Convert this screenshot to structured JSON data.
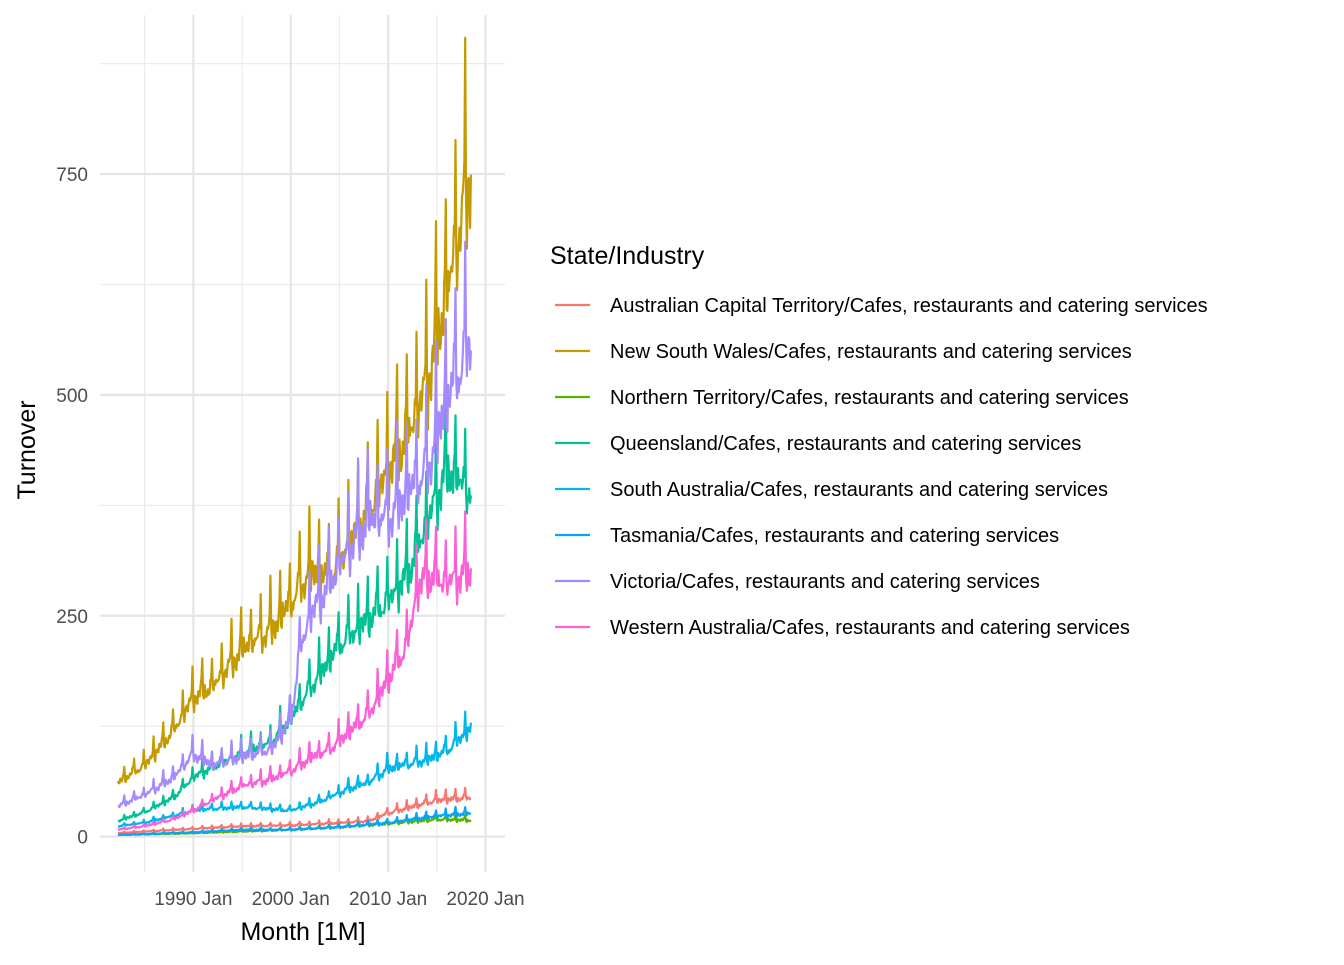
{
  "chart_data": {
    "type": "line",
    "xlabel": "Month [1M]",
    "ylabel": "Turnover",
    "x_ticks": [
      "1990 Jan",
      "2000 Jan",
      "2010 Jan",
      "2020 Jan"
    ],
    "y_ticks": [
      0,
      250,
      500,
      750
    ],
    "xlim": [
      "1980-06",
      "2022-01"
    ],
    "ylim": [
      -40,
      930
    ],
    "grid": true,
    "legend": {
      "title": "State/Industry",
      "position": "right"
    },
    "series": [
      {
        "name": "Australian Capital Territory/Cafes, restaurants and catering services",
        "color": "#F8766D",
        "base": [
          [
            1982.25,
            4
          ],
          [
            1985,
            6
          ],
          [
            1990,
            9
          ],
          [
            1995,
            12
          ],
          [
            2000,
            13
          ],
          [
            2005,
            16
          ],
          [
            2008,
            18
          ],
          [
            2010,
            27
          ],
          [
            2012,
            33
          ],
          [
            2015,
            42
          ],
          [
            2018.5,
            45
          ]
        ],
        "amp": 0.08
      },
      {
        "name": "New South Wales/Cafes, restaurants and catering services",
        "color": "#C49A00",
        "base": [
          [
            1982.25,
            62
          ],
          [
            1985,
            82
          ],
          [
            1988,
            122
          ],
          [
            1990,
            160
          ],
          [
            1992,
            172
          ],
          [
            1995,
            215
          ],
          [
            1998,
            238
          ],
          [
            2000,
            268
          ],
          [
            2002,
            305
          ],
          [
            2004,
            300
          ],
          [
            2006,
            335
          ],
          [
            2008,
            375
          ],
          [
            2010,
            420
          ],
          [
            2012,
            460
          ],
          [
            2014,
            520
          ],
          [
            2016,
            620
          ],
          [
            2018.5,
            765
          ]
        ],
        "amp": 0.065
      },
      {
        "name": "Northern Territory/Cafes, restaurants and catering services",
        "color": "#53B400",
        "base": [
          [
            1982.25,
            2
          ],
          [
            1990,
            4
          ],
          [
            1995,
            6
          ],
          [
            2000,
            8
          ],
          [
            2005,
            11
          ],
          [
            2010,
            15
          ],
          [
            2015,
            20
          ],
          [
            2018.5,
            19
          ]
        ],
        "amp": 0.1
      },
      {
        "name": "Queensland/Cafes, restaurants and catering services",
        "color": "#00C094",
        "base": [
          [
            1982.25,
            18
          ],
          [
            1985,
            28
          ],
          [
            1988,
            45
          ],
          [
            1990,
            68
          ],
          [
            1992,
            80
          ],
          [
            1995,
            95
          ],
          [
            1998,
            108
          ],
          [
            2000,
            135
          ],
          [
            2002,
            170
          ],
          [
            2005,
            220
          ],
          [
            2008,
            250
          ],
          [
            2010,
            270
          ],
          [
            2012,
            300
          ],
          [
            2014,
            360
          ],
          [
            2016,
            420
          ],
          [
            2018.5,
            395
          ]
        ],
        "amp": 0.06
      },
      {
        "name": "South Australia/Cafes, restaurants and catering services",
        "color": "#00B6EB",
        "base": [
          [
            1982.25,
            12
          ],
          [
            1985,
            16
          ],
          [
            1988,
            24
          ],
          [
            1990,
            30
          ],
          [
            1992,
            32
          ],
          [
            1995,
            34
          ],
          [
            2000,
            30
          ],
          [
            2003,
            40
          ],
          [
            2006,
            55
          ],
          [
            2008,
            62
          ],
          [
            2010,
            78
          ],
          [
            2012,
            83
          ],
          [
            2014,
            88
          ],
          [
            2016,
            98
          ],
          [
            2018.5,
            125
          ]
        ],
        "amp": 0.06
      },
      {
        "name": "Tasmania/Cafes, restaurants and catering services",
        "color": "#06A4FF",
        "base": [
          [
            1982.25,
            2
          ],
          [
            1990,
            5
          ],
          [
            1995,
            8
          ],
          [
            2000,
            8
          ],
          [
            2005,
            11
          ],
          [
            2010,
            16
          ],
          [
            2015,
            24
          ],
          [
            2018.5,
            27
          ]
        ],
        "amp": 0.09
      },
      {
        "name": "Victoria/Cafes, restaurants and catering services",
        "color": "#A58AFF",
        "base": [
          [
            1982.25,
            35
          ],
          [
            1985,
            48
          ],
          [
            1988,
            68
          ],
          [
            1990,
            95
          ],
          [
            1992,
            82
          ],
          [
            1995,
            92
          ],
          [
            1998,
            100
          ],
          [
            2000,
            135
          ],
          [
            2001,
            215
          ],
          [
            2002,
            255
          ],
          [
            2004,
            290
          ],
          [
            2006,
            330
          ],
          [
            2008,
            365
          ],
          [
            2010,
            365
          ],
          [
            2012,
            395
          ],
          [
            2014,
            420
          ],
          [
            2016,
            500
          ],
          [
            2018.5,
            570
          ]
        ],
        "amp": 0.065
      },
      {
        "name": "Western Australia/Cafes, restaurants and catering services",
        "color": "#FB61D7",
        "base": [
          [
            1982.25,
            8
          ],
          [
            1985,
            12
          ],
          [
            1988,
            20
          ],
          [
            1990,
            30
          ],
          [
            1992,
            42
          ],
          [
            1995,
            58
          ],
          [
            1998,
            66
          ],
          [
            2000,
            75
          ],
          [
            2002,
            90
          ],
          [
            2004,
            100
          ],
          [
            2006,
            120
          ],
          [
            2008,
            140
          ],
          [
            2010,
            180
          ],
          [
            2012,
            220
          ],
          [
            2013,
            285
          ],
          [
            2014,
            300
          ],
          [
            2016,
            290
          ],
          [
            2018.5,
            305
          ]
        ],
        "amp": 0.06
      }
    ]
  }
}
